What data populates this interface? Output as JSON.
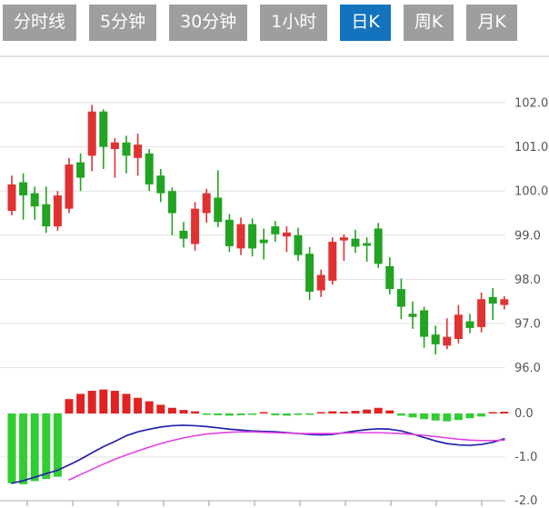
{
  "tabs": {
    "items": [
      {
        "label": "分时线",
        "active": false
      },
      {
        "label": "5分钟",
        "active": false
      },
      {
        "label": "30分钟",
        "active": false
      },
      {
        "label": "1小时",
        "active": false
      },
      {
        "label": "日K",
        "active": true
      },
      {
        "label": "周K",
        "active": false
      },
      {
        "label": "月K",
        "active": false
      }
    ]
  },
  "colors": {
    "up": "#e03232",
    "down": "#22a322",
    "macd_up": "#e02222",
    "macd_down": "#33cc33",
    "dif_line": "#2222aa",
    "dea_line": "#e040e0",
    "tab_bg": "#9e9e9e",
    "tab_active_bg": "#1373be",
    "grid": "#e2e2e2",
    "separator": "#d8d8d8",
    "axis_line": "#c0c0c0",
    "tick": "#999999",
    "label": "#555555"
  },
  "chart_data": {
    "type": "candlestick",
    "title": "",
    "legend_position": "none",
    "grid": true,
    "price_axis": {
      "min": 96.0,
      "max": 102.0,
      "tick_labels": [
        "102.0",
        "101.0",
        "100.0",
        "99.0",
        "98.0",
        "97.0",
        "96.0"
      ],
      "tick_values": [
        102.0,
        101.0,
        100.0,
        99.0,
        98.0,
        97.0,
        96.0
      ]
    },
    "candles": [
      {
        "o": 99.55,
        "h": 100.35,
        "l": 99.45,
        "c": 100.15
      },
      {
        "o": 100.2,
        "h": 100.4,
        "l": 99.35,
        "c": 99.9
      },
      {
        "o": 99.95,
        "h": 100.1,
        "l": 99.35,
        "c": 99.65
      },
      {
        "o": 99.7,
        "h": 100.1,
        "l": 99.05,
        "c": 99.2
      },
      {
        "o": 99.2,
        "h": 100.0,
        "l": 99.1,
        "c": 99.9
      },
      {
        "o": 99.6,
        "h": 100.75,
        "l": 99.5,
        "c": 100.6
      },
      {
        "o": 100.65,
        "h": 100.85,
        "l": 100.0,
        "c": 100.3
      },
      {
        "o": 100.8,
        "h": 101.95,
        "l": 100.45,
        "c": 101.8
      },
      {
        "o": 101.8,
        "h": 101.85,
        "l": 100.5,
        "c": 101.0
      },
      {
        "o": 100.95,
        "h": 101.2,
        "l": 100.3,
        "c": 101.1
      },
      {
        "o": 101.1,
        "h": 101.25,
        "l": 100.4,
        "c": 100.8
      },
      {
        "o": 100.75,
        "h": 101.3,
        "l": 100.35,
        "c": 101.05
      },
      {
        "o": 100.85,
        "h": 100.95,
        "l": 100.0,
        "c": 100.15
      },
      {
        "o": 100.35,
        "h": 100.5,
        "l": 99.75,
        "c": 99.95
      },
      {
        "o": 100.0,
        "h": 100.08,
        "l": 99.0,
        "c": 99.5
      },
      {
        "o": 99.1,
        "h": 99.3,
        "l": 98.72,
        "c": 98.92
      },
      {
        "o": 98.8,
        "h": 99.75,
        "l": 98.65,
        "c": 99.6
      },
      {
        "o": 99.5,
        "h": 100.05,
        "l": 99.28,
        "c": 99.95
      },
      {
        "o": 99.85,
        "h": 100.47,
        "l": 99.18,
        "c": 99.3
      },
      {
        "o": 99.35,
        "h": 99.48,
        "l": 98.62,
        "c": 98.75
      },
      {
        "o": 98.7,
        "h": 99.4,
        "l": 98.55,
        "c": 99.25
      },
      {
        "o": 99.25,
        "h": 99.38,
        "l": 98.52,
        "c": 98.7
      },
      {
        "o": 98.9,
        "h": 99.15,
        "l": 98.45,
        "c": 98.82
      },
      {
        "o": 99.2,
        "h": 99.32,
        "l": 98.85,
        "c": 99.02
      },
      {
        "o": 98.97,
        "h": 99.2,
        "l": 98.62,
        "c": 99.06
      },
      {
        "o": 99.0,
        "h": 99.17,
        "l": 98.42,
        "c": 98.55
      },
      {
        "o": 98.58,
        "h": 98.73,
        "l": 97.53,
        "c": 97.72
      },
      {
        "o": 97.75,
        "h": 98.22,
        "l": 97.6,
        "c": 98.1
      },
      {
        "o": 97.97,
        "h": 98.95,
        "l": 97.88,
        "c": 98.85
      },
      {
        "o": 98.88,
        "h": 99.02,
        "l": 98.42,
        "c": 98.95
      },
      {
        "o": 98.92,
        "h": 99.12,
        "l": 98.6,
        "c": 98.74
      },
      {
        "o": 98.82,
        "h": 98.95,
        "l": 98.4,
        "c": 98.76
      },
      {
        "o": 99.15,
        "h": 99.28,
        "l": 98.26,
        "c": 98.35
      },
      {
        "o": 98.3,
        "h": 98.5,
        "l": 97.66,
        "c": 97.78
      },
      {
        "o": 97.78,
        "h": 98.02,
        "l": 97.1,
        "c": 97.38
      },
      {
        "o": 97.22,
        "h": 97.5,
        "l": 96.88,
        "c": 97.15
      },
      {
        "o": 97.3,
        "h": 97.38,
        "l": 96.45,
        "c": 96.7
      },
      {
        "o": 96.75,
        "h": 96.95,
        "l": 96.3,
        "c": 96.53
      },
      {
        "o": 96.5,
        "h": 97.12,
        "l": 96.42,
        "c": 96.7
      },
      {
        "o": 96.65,
        "h": 97.42,
        "l": 96.55,
        "c": 97.2
      },
      {
        "o": 97.05,
        "h": 97.22,
        "l": 96.78,
        "c": 96.9
      },
      {
        "o": 96.92,
        "h": 97.7,
        "l": 96.8,
        "c": 97.55
      },
      {
        "o": 97.6,
        "h": 97.8,
        "l": 97.08,
        "c": 97.45
      },
      {
        "o": 97.42,
        "h": 97.62,
        "l": 97.32,
        "c": 97.55
      }
    ],
    "macd": {
      "axis_labels": [
        "0.0",
        "-1.0",
        "-2.0"
      ],
      "axis_values": [
        0.0,
        -1.0,
        -2.0
      ],
      "histogram": [
        -1.6,
        -1.62,
        -1.55,
        -1.5,
        -1.45,
        0.33,
        0.45,
        0.52,
        0.55,
        0.52,
        0.45,
        0.36,
        0.28,
        0.2,
        0.13,
        0.08,
        0.05,
        -0.03,
        -0.04,
        -0.05,
        -0.04,
        -0.03,
        0.02,
        -0.04,
        -0.05,
        -0.03,
        -0.02,
        0.02,
        0.05,
        0.04,
        0.06,
        0.09,
        0.13,
        0.07,
        -0.05,
        -0.09,
        -0.13,
        -0.16,
        -0.18,
        -0.15,
        -0.11,
        -0.07,
        0.03,
        0.04
      ],
      "dif": [
        -1.6,
        -1.54,
        -1.46,
        -1.38,
        -1.3,
        -1.18,
        -1.05,
        -0.9,
        -0.76,
        -0.64,
        -0.51,
        -0.42,
        -0.36,
        -0.31,
        -0.28,
        -0.27,
        -0.28,
        -0.3,
        -0.33,
        -0.36,
        -0.38,
        -0.4,
        -0.41,
        -0.42,
        -0.44,
        -0.46,
        -0.48,
        -0.49,
        -0.48,
        -0.44,
        -0.4,
        -0.37,
        -0.35,
        -0.36,
        -0.4,
        -0.47,
        -0.55,
        -0.63,
        -0.69,
        -0.72,
        -0.73,
        -0.71,
        -0.66,
        -0.58
      ],
      "dea": [
        null,
        null,
        null,
        null,
        null,
        -1.52,
        -1.4,
        -1.28,
        -1.16,
        -1.05,
        -0.95,
        -0.86,
        -0.77,
        -0.69,
        -0.62,
        -0.56,
        -0.51,
        -0.47,
        -0.45,
        -0.43,
        -0.42,
        -0.42,
        -0.43,
        -0.44,
        -0.45,
        -0.46,
        -0.46,
        -0.46,
        -0.46,
        -0.45,
        -0.44,
        -0.44,
        -0.44,
        -0.45,
        -0.46,
        -0.48,
        -0.5,
        -0.53,
        -0.56,
        -0.59,
        -0.61,
        -0.62,
        -0.62,
        -0.61
      ]
    }
  }
}
